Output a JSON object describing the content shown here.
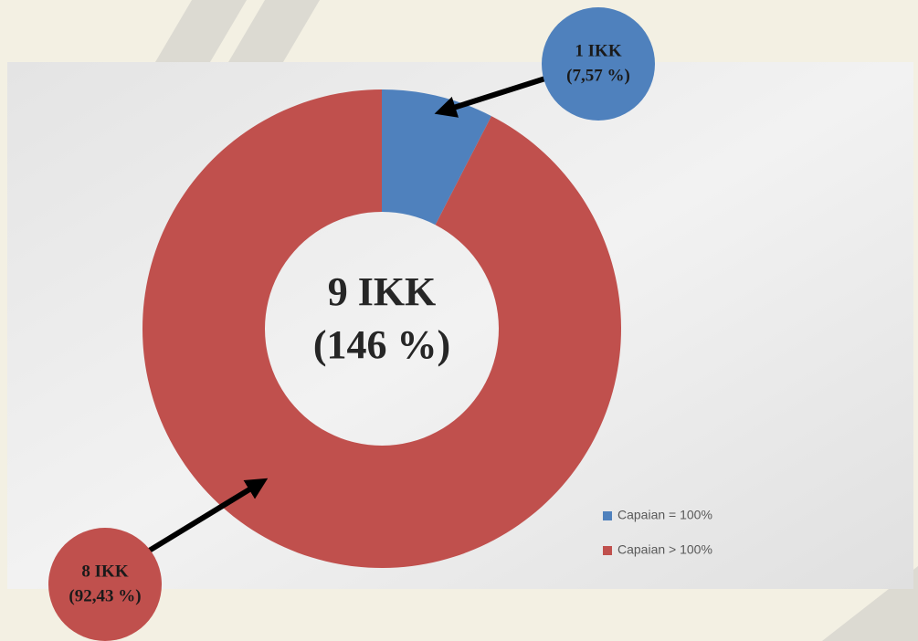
{
  "chart_data": {
    "type": "donut",
    "categories": [
      "Capaian = 100%",
      "Capaian > 100%"
    ],
    "values": [
      7.57,
      92.43
    ],
    "value_labels": [
      "(7,57 %)",
      "(92,43 %)"
    ],
    "count_labels": [
      "1 IKK",
      "8 IKK"
    ],
    "colors": [
      "#4f81bd",
      "#c0504d"
    ],
    "center_text": [
      "9 IKK",
      "(146 %)"
    ],
    "legend": "bottom-right"
  }
}
